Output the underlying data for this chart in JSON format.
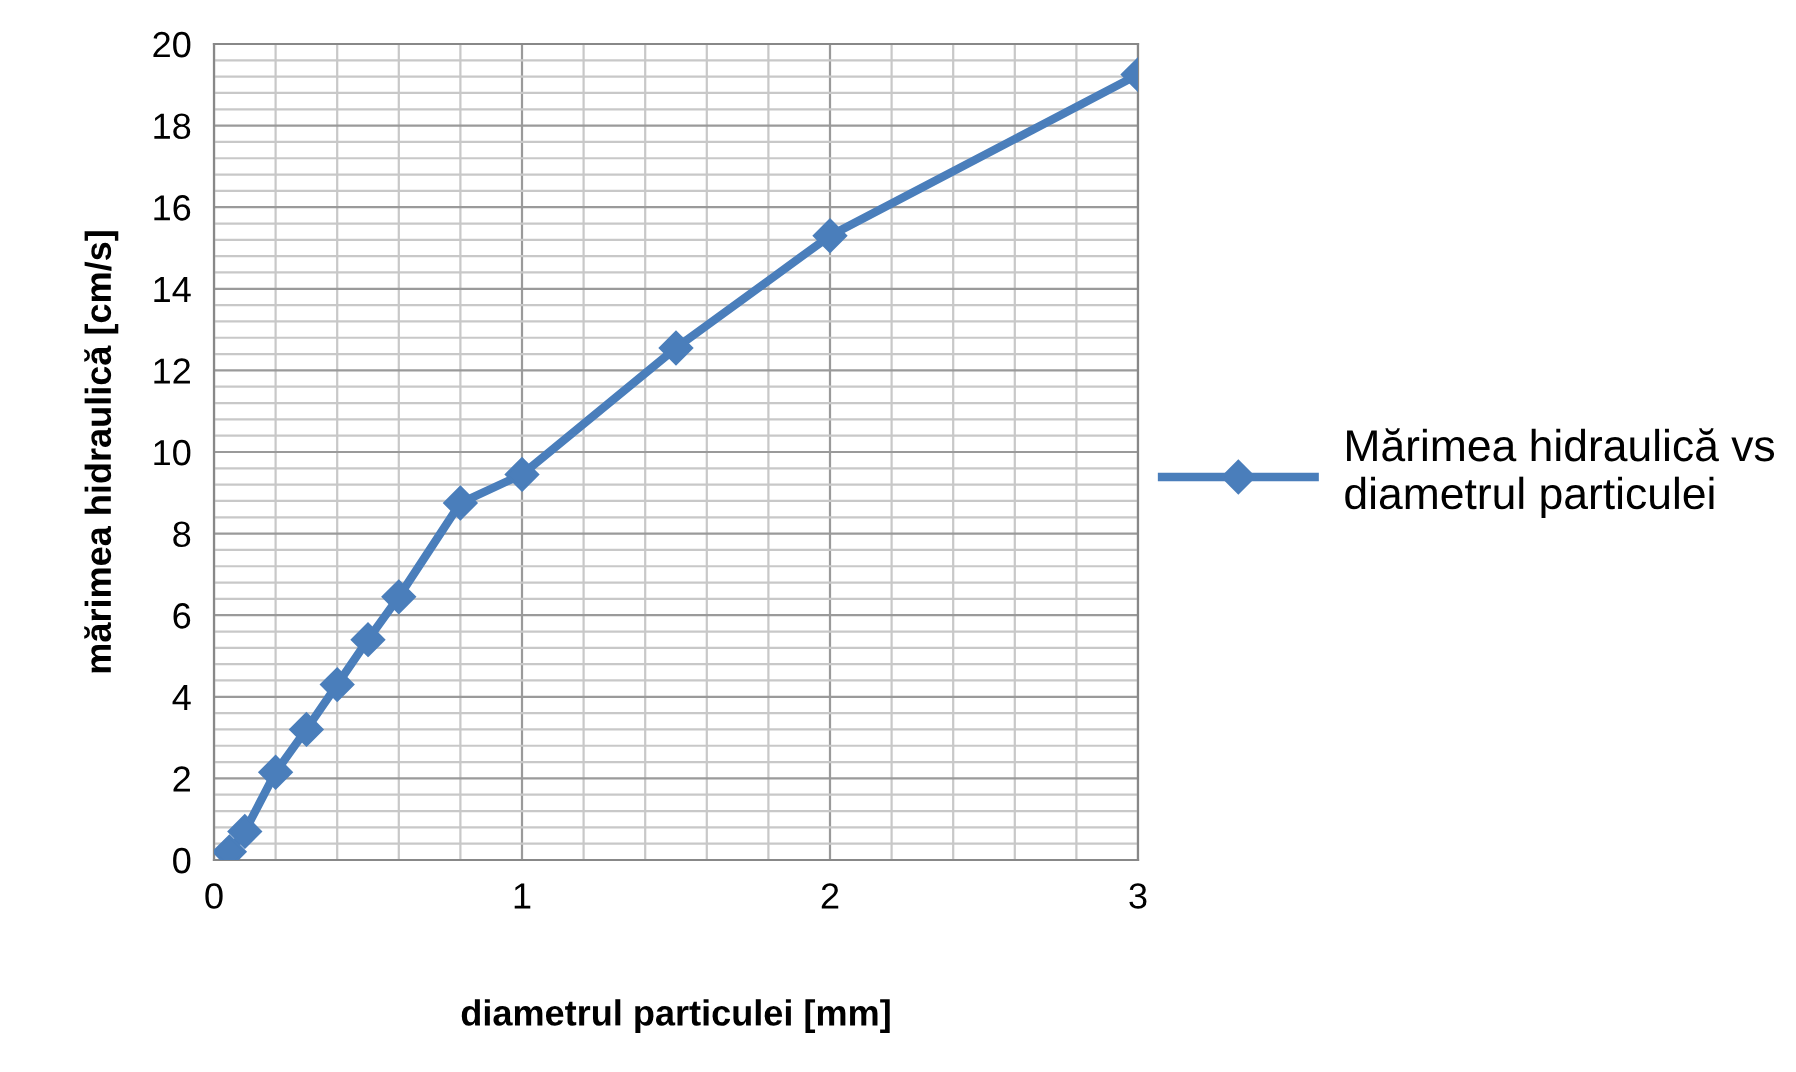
{
  "chart_data": {
    "type": "line",
    "xlabel": "diametrul particulei [mm]",
    "ylabel": "mărimea hidraulică [cm/s]",
    "x": [
      0.05,
      0.1,
      0.2,
      0.3,
      0.4,
      0.5,
      0.6,
      0.8,
      1,
      1.5,
      2,
      3
    ],
    "series": [
      {
        "name": "Mărimea hidraulică vs diametrul particulei",
        "color": "#4a7ebb",
        "values": [
          0.2,
          0.7,
          2.15,
          3.2,
          4.3,
          5.4,
          6.45,
          8.75,
          9.45,
          12.55,
          15.3,
          19.25
        ]
      }
    ],
    "xlim": [
      0,
      3
    ],
    "ylim": [
      0,
      20
    ],
    "xticks": [
      0,
      {
        "value": 0.2,
        "label": null
      },
      {
        "value": 0.4,
        "label": null
      },
      {
        "value": 0.6,
        "label": null
      },
      {
        "value": 0.8,
        "label": null
      },
      1,
      {
        "value": 1.2,
        "label": null
      },
      {
        "value": 1.4,
        "label": null
      },
      {
        "value": 1.6,
        "label": null
      },
      {
        "value": 1.8,
        "label": null
      },
      2,
      {
        "value": 2.2,
        "label": null
      },
      {
        "value": 2.4,
        "label": null
      },
      {
        "value": 2.6,
        "label": null
      },
      {
        "value": 2.8,
        "label": null
      },
      3
    ],
    "yticks": [
      0,
      {
        "value": 0.4,
        "label": null
      },
      {
        "value": 0.8,
        "label": null
      },
      {
        "value": 1.2,
        "label": null
      },
      {
        "value": 1.6,
        "label": null
      },
      2,
      {
        "value": 2.4,
        "label": null
      },
      {
        "value": 2.8,
        "label": null
      },
      {
        "value": 3.2,
        "label": null
      },
      {
        "value": 3.6,
        "label": null
      },
      4,
      {
        "value": 4.4,
        "label": null
      },
      {
        "value": 4.8,
        "label": null
      },
      {
        "value": 5.2,
        "label": null
      },
      {
        "value": 5.6,
        "label": null
      },
      6,
      {
        "value": 6.4,
        "label": null
      },
      {
        "value": 6.8,
        "label": null
      },
      {
        "value": 7.2,
        "label": null
      },
      {
        "value": 7.6,
        "label": null
      },
      8,
      {
        "value": 8.4,
        "label": null
      },
      {
        "value": 8.8,
        "label": null
      },
      {
        "value": 9.2,
        "label": null
      },
      {
        "value": 9.6,
        "label": null
      },
      10,
      {
        "value": 10.4,
        "label": null
      },
      {
        "value": 10.8,
        "label": null
      },
      {
        "value": 11.2,
        "label": null
      },
      {
        "value": 11.6,
        "label": null
      },
      12,
      {
        "value": 12.4,
        "label": null
      },
      {
        "value": 12.8,
        "label": null
      },
      {
        "value": 13.2,
        "label": null
      },
      {
        "value": 13.6,
        "label": null
      },
      14,
      {
        "value": 14.4,
        "label": null
      },
      {
        "value": 14.8,
        "label": null
      },
      {
        "value": 15.2,
        "label": null
      },
      {
        "value": 15.6,
        "label": null
      },
      16,
      {
        "value": 16.4,
        "label": null
      },
      {
        "value": 16.8,
        "label": null
      },
      {
        "value": 17.2,
        "label": null
      },
      {
        "value": 17.6,
        "label": null
      },
      18,
      {
        "value": 18.4,
        "label": null
      },
      {
        "value": 18.8,
        "label": null
      },
      {
        "value": 19.2,
        "label": null
      },
      {
        "value": 19.6,
        "label": null
      },
      20
    ],
    "grid": true,
    "legend": "right",
    "marker": "diamond",
    "line_style": "solid"
  }
}
